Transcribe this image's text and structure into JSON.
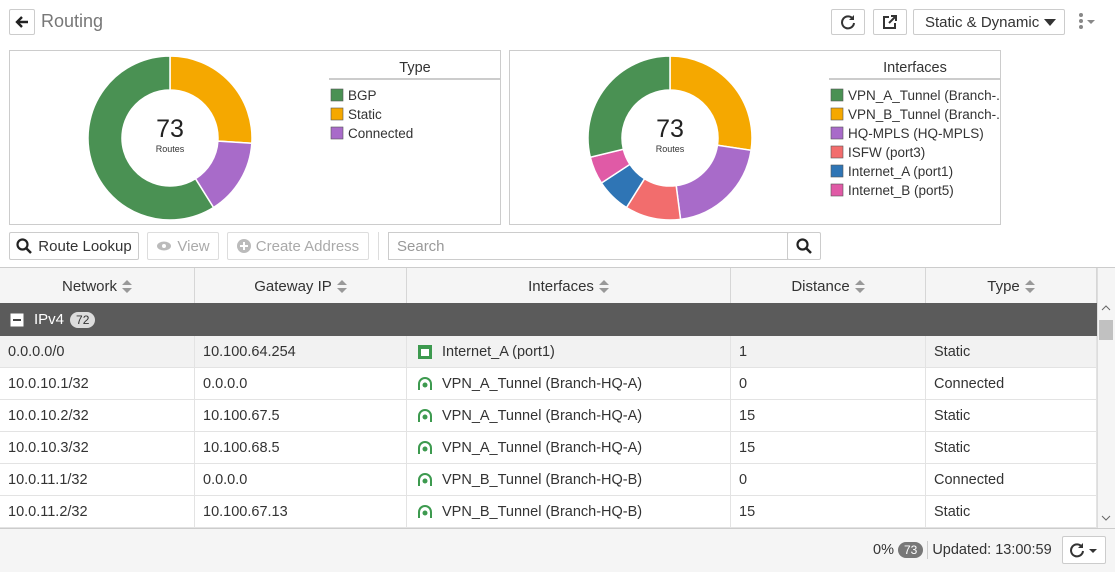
{
  "header": {
    "title": "Routing",
    "filter": "Static & Dynamic"
  },
  "charts": [
    {
      "legend_title": "Type",
      "center_value": 73,
      "center_label": "Routes",
      "segments": [
        {
          "name": "BGP",
          "color": "#4a9153",
          "value": 43
        },
        {
          "name": "Static",
          "color": "#f5a800",
          "value": 19
        },
        {
          "name": "Connected",
          "color": "#a86bc9",
          "value": 11
        }
      ]
    },
    {
      "legend_title": "Interfaces",
      "center_value": 73,
      "center_label": "Routes",
      "segments": [
        {
          "name": "VPN_A_Tunnel (Branch-...",
          "color": "#4a9153",
          "value": 21
        },
        {
          "name": "VPN_B_Tunnel (Branch-...",
          "color": "#f5a800",
          "value": 20
        },
        {
          "name": "HQ-MPLS (HQ-MPLS)",
          "color": "#a86bc9",
          "value": 15
        },
        {
          "name": "ISFW (port3)",
          "color": "#f26d6d",
          "value": 8
        },
        {
          "name": "Internet_A (port1)",
          "color": "#2f75b5",
          "value": 5
        },
        {
          "name": "Internet_B (port5)",
          "color": "#e05aa6",
          "value": 4
        }
      ]
    }
  ],
  "toolbar": {
    "route_lookup": "Route Lookup",
    "view": "View",
    "create_address": "Create Address",
    "search_placeholder": "Search"
  },
  "table": {
    "columns": [
      "Network",
      "Gateway IP",
      "Interfaces",
      "Distance",
      "Type"
    ],
    "group": {
      "name": "IPv4",
      "count": 72
    },
    "rows": [
      [
        "0.0.0.0/0",
        "10.100.64.254",
        "Internet_A (port1)",
        1,
        "Static"
      ],
      [
        "10.0.10.1/32",
        "0.0.0.0",
        "VPN_A_Tunnel (Branch-HQ-A)",
        0,
        "Connected"
      ],
      [
        "10.0.10.2/32",
        "10.100.67.5",
        "VPN_A_Tunnel (Branch-HQ-A)",
        15,
        "Static"
      ],
      [
        "10.0.10.3/32",
        "10.100.68.5",
        "VPN_A_Tunnel (Branch-HQ-A)",
        15,
        "Static"
      ],
      [
        "10.0.11.1/32",
        "0.0.0.0",
        "VPN_B_Tunnel (Branch-HQ-B)",
        0,
        "Connected"
      ],
      [
        "10.0.11.2/32",
        "10.100.67.13",
        "VPN_B_Tunnel (Branch-HQ-B)",
        15,
        "Static"
      ]
    ]
  },
  "footer": {
    "percent": "0%",
    "count": 73,
    "updated": "Updated: 13:00:59"
  }
}
